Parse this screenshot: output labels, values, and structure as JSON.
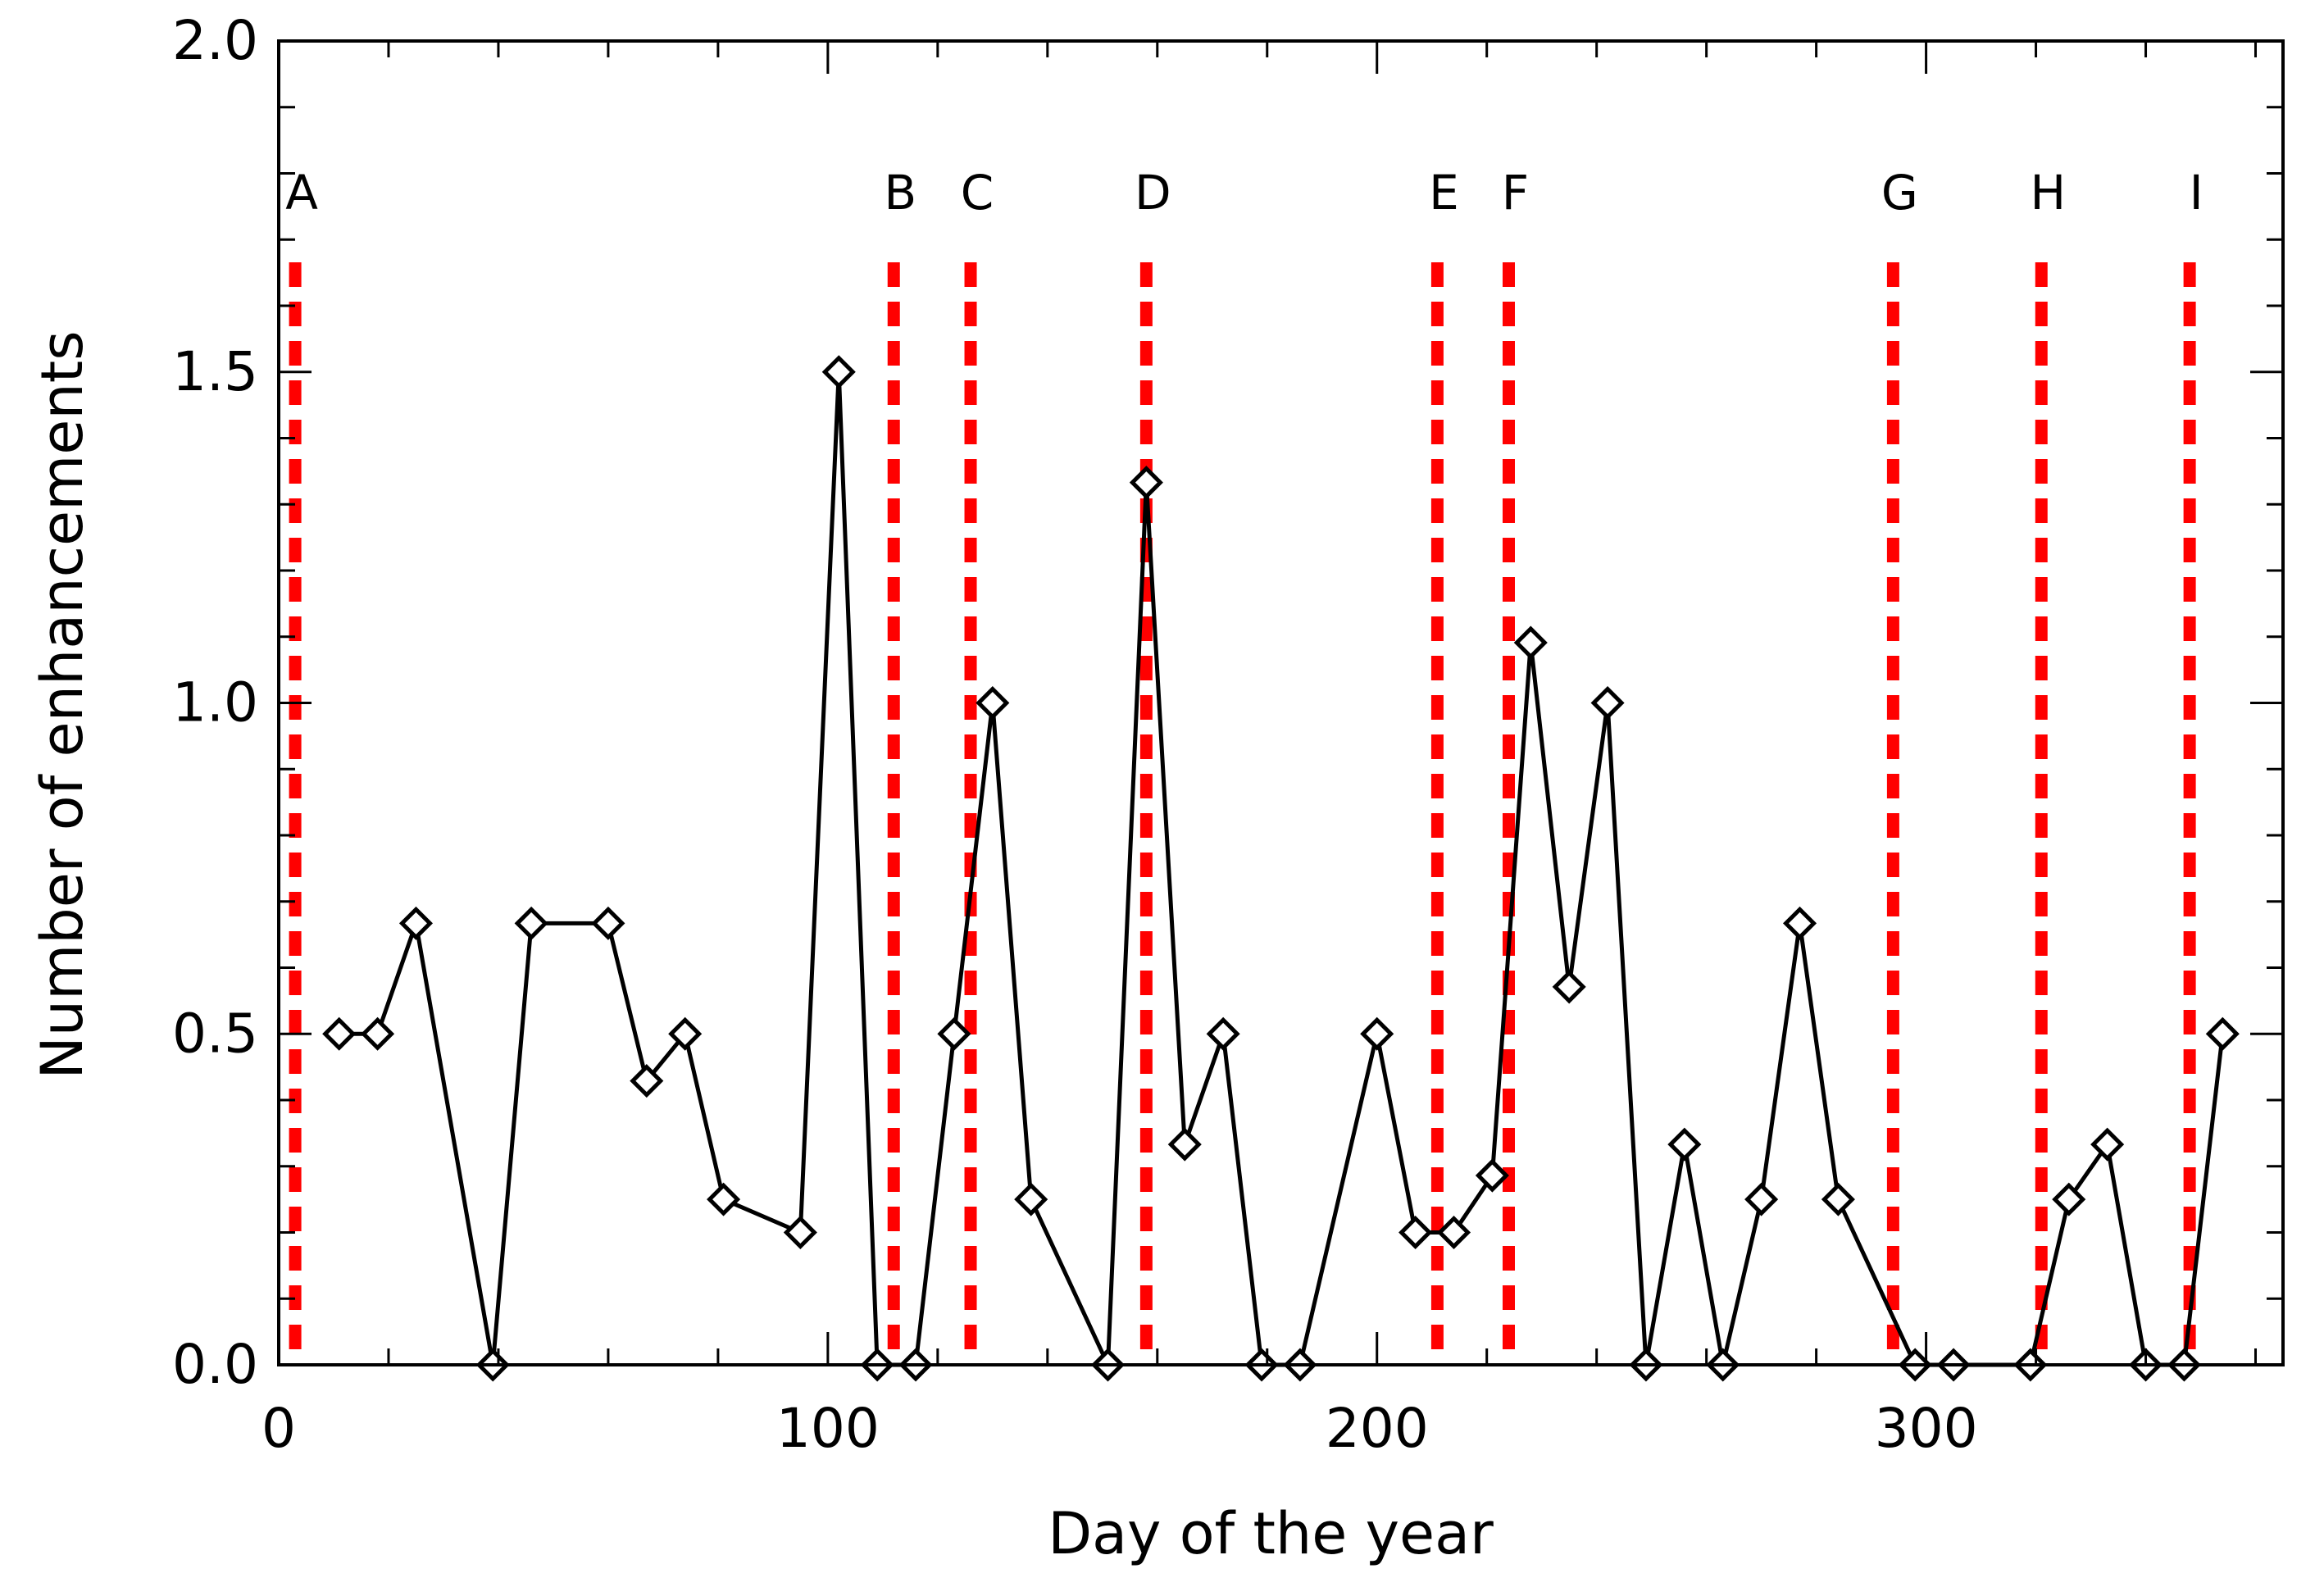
{
  "chart_data": {
    "type": "line",
    "title": "",
    "xlabel": "Day of the year",
    "ylabel": "Number of enhancements",
    "xlim": [
      0,
      365
    ],
    "ylim": [
      0,
      2.0
    ],
    "xticks": [
      0,
      100,
      200,
      300
    ],
    "xtick_labels": [
      "0",
      "100",
      "200",
      "300"
    ],
    "yticks": [
      0,
      0.5,
      1.0,
      1.5,
      2.0
    ],
    "ytick_labels": [
      "0.0",
      "0.5",
      "1.0",
      "1.5",
      "2.0"
    ],
    "grid": false,
    "colors": {
      "series": "#000000",
      "event_line": "#ff0000",
      "axis": "#000000"
    },
    "series": [
      {
        "name": "Number of enhancements",
        "marker": "diamond",
        "x": [
          11,
          18,
          25,
          39,
          46,
          60,
          67,
          74,
          81,
          95,
          102,
          109,
          116,
          123,
          130,
          137,
          151,
          158,
          165,
          172,
          179,
          186,
          200,
          207,
          214,
          221,
          228,
          235,
          242,
          249,
          256,
          263,
          270,
          277,
          284,
          298,
          305,
          319,
          326,
          333,
          340,
          347,
          354
        ],
        "values": [
          0.5,
          0.5,
          0.667,
          0.0,
          0.667,
          0.667,
          0.429,
          0.5,
          0.25,
          0.2,
          1.5,
          0.0,
          0.0,
          0.5,
          1.0,
          0.25,
          0.0,
          1.333,
          0.333,
          0.5,
          0.0,
          0.0,
          0.5,
          0.2,
          0.2,
          0.286,
          1.091,
          0.571,
          1.0,
          0.0,
          0.333,
          0.0,
          0.25,
          0.667,
          0.25,
          0.0,
          0.0,
          0.0,
          0.25,
          0.333,
          0.0,
          0.0,
          0.5
        ]
      }
    ],
    "events": [
      {
        "label": "A",
        "day": 3
      },
      {
        "label": "B",
        "day": 112
      },
      {
        "label": "C",
        "day": 126
      },
      {
        "label": "D",
        "day": 158
      },
      {
        "label": "E",
        "day": 211
      },
      {
        "label": "F",
        "day": 224
      },
      {
        "label": "G",
        "day": 294
      },
      {
        "label": "H",
        "day": 321
      },
      {
        "label": "I",
        "day": 348
      }
    ]
  }
}
